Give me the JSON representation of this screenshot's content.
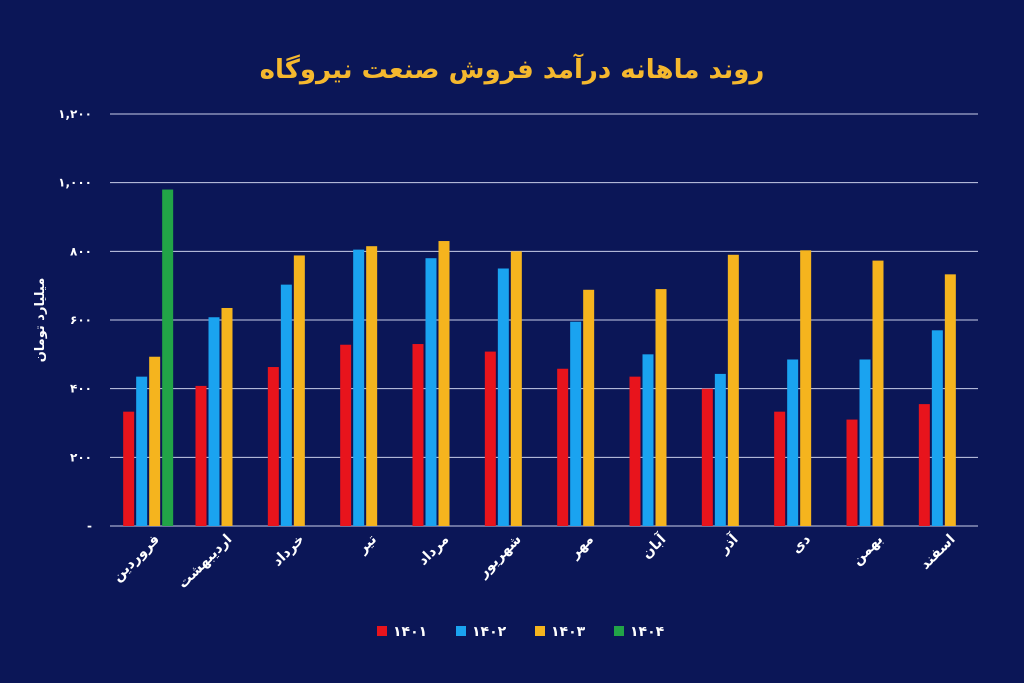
{
  "colors": {
    "background": "#0b1657",
    "title": "#f5b82e",
    "text": "#ffffff",
    "grid": "#c9cde8",
    "series": [
      "#e8141c",
      "#1aa3f0",
      "#f5b41e",
      "#22a447"
    ]
  },
  "chart_data": {
    "type": "bar",
    "title": "روند ماهانه درآمد فروش صنعت نیروگاه",
    "xlabel": "",
    "ylabel": "میلیارد تومان",
    "ylim": [
      0,
      1200
    ],
    "yticks": [
      0,
      200,
      400,
      600,
      800,
      1000,
      1200
    ],
    "ytick_labels": [
      "-",
      "۲۰۰",
      "۴۰۰",
      "۶۰۰",
      "۸۰۰",
      "۱,۰۰۰",
      "۱,۲۰۰"
    ],
    "grid": true,
    "legend_position": "bottom",
    "categories": [
      "فروردین",
      "اردیبهشت",
      "خرداد",
      "تیر",
      "مرداد",
      "شهریور",
      "مهر",
      "آبان",
      "آذر",
      "دی",
      "بهمن",
      "اسفند"
    ],
    "series": [
      {
        "name": "۱۴۰۱",
        "values": [
          333,
          408,
          463,
          528,
          530,
          508,
          458,
          435,
          400,
          333,
          310,
          355
        ]
      },
      {
        "name": "۱۴۰۲",
        "values": [
          435,
          608,
          703,
          805,
          780,
          750,
          595,
          500,
          443,
          485,
          485,
          570
        ]
      },
      {
        "name": "۱۴۰۳",
        "values": [
          493,
          635,
          788,
          815,
          830,
          800,
          688,
          690,
          790,
          803,
          773,
          733
        ]
      },
      {
        "name": "۱۴۰۴",
        "values": [
          980,
          null,
          null,
          null,
          null,
          null,
          null,
          null,
          null,
          null,
          null,
          null
        ]
      }
    ]
  }
}
